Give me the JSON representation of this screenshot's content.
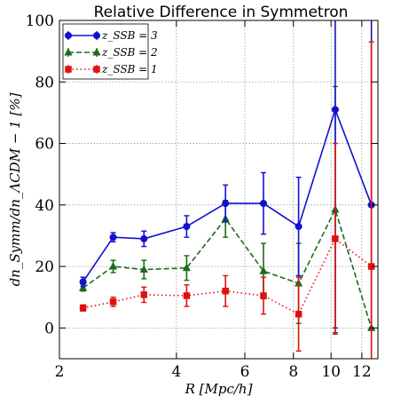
{
  "chart_data": {
    "type": "line",
    "title": "Relative Difference in Symmetron",
    "xlabel": "R [Mpc/h]",
    "ylabel": "dn_Symm/dn_ΛCDM − 1 [%]",
    "xscale": "log",
    "xlim": [
      2.0,
      13.2
    ],
    "ylim": [
      -10,
      100
    ],
    "xticks": [
      2,
      4,
      6,
      8,
      10,
      12
    ],
    "xtick_labels": [
      "2",
      "4",
      "6",
      "8",
      "10",
      "12"
    ],
    "yticks": [
      0,
      20,
      40,
      60,
      80,
      100
    ],
    "ytick_labels": [
      "0",
      "20",
      "40",
      "60",
      "80",
      "100"
    ],
    "grid": true,
    "legend_position": "top-left",
    "series": [
      {
        "name": "z_SSB = 3",
        "color": "#1010d0",
        "linestyle": "solid",
        "marker": "circle",
        "x": [
          2.3,
          2.75,
          3.3,
          4.25,
          5.35,
          6.7,
          8.25,
          10.25,
          12.7
        ],
        "y": [
          15,
          29.5,
          29,
          33,
          40.5,
          40.5,
          33,
          71,
          40
        ],
        "yerr_low": [
          1.5,
          1.5,
          2.5,
          3.5,
          6,
          10,
          16,
          71,
          40
        ],
        "yerr_high": [
          1.5,
          1.5,
          2.5,
          3.5,
          6,
          10,
          16,
          40,
          70
        ]
      },
      {
        "name": "z_SSB = 2",
        "color": "#1a6b1a",
        "linestyle": "dashed",
        "marker": "triangle",
        "x": [
          2.3,
          2.75,
          3.3,
          4.25,
          5.35,
          6.7,
          8.25,
          10.25,
          12.7
        ],
        "y": [
          13,
          20,
          19,
          19.5,
          35.5,
          18.5,
          14.5,
          38.5,
          0
        ],
        "yerr_low": [
          1,
          2,
          3,
          4,
          6,
          9,
          13,
          40,
          0
        ],
        "yerr_high": [
          1,
          2,
          3,
          4,
          6,
          9,
          13,
          40,
          0
        ]
      },
      {
        "name": "z_SSB = 1",
        "color": "#e01010",
        "linestyle": "dotted",
        "marker": "square",
        "x": [
          2.3,
          2.75,
          3.3,
          4.25,
          5.35,
          6.7,
          8.25,
          10.25,
          12.7
        ],
        "y": [
          6.5,
          8.5,
          10.8,
          10.5,
          12,
          10.5,
          4.5,
          29,
          20
        ],
        "yerr_low": [
          1,
          1.5,
          2.5,
          3.5,
          5,
          6,
          12,
          31,
          30
        ],
        "yerr_high": [
          1,
          1.5,
          2.5,
          3.5,
          5,
          6,
          12,
          31,
          73
        ]
      }
    ]
  }
}
